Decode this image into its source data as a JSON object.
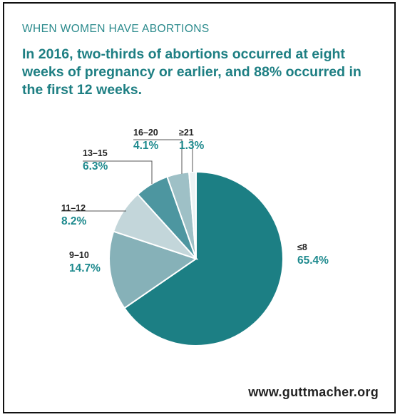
{
  "kicker": "WHEN WOMEN HAVE ABORTIONS",
  "headline": "In 2016, two-thirds of abortions occurred at eight weeks of pregnancy or earlier, and 88% occurred in the first 12 weeks.",
  "footer": "www.guttmacher.org",
  "chart_data": {
    "type": "pie",
    "unit": "%",
    "start": "12 o'clock, clockwise",
    "slices": [
      {
        "label": "≤8",
        "value": 65.4,
        "value_label": "65.4%",
        "color": "#1c7f84"
      },
      {
        "label": "9–10",
        "value": 14.7,
        "value_label": "14.7%",
        "color": "#86b1b8"
      },
      {
        "label": "11–12",
        "value": 8.2,
        "value_label": "8.2%",
        "color": "#c3d6da"
      },
      {
        "label": "13–15",
        "value": 6.3,
        "value_label": "6.3%",
        "color": "#4d96a0"
      },
      {
        "label": "16–20",
        "value": 4.1,
        "value_label": "4.1%",
        "color": "#9ec0c6"
      },
      {
        "label": "≥21",
        "value": 1.3,
        "value_label": "1.3%",
        "color": "#ecf3f4"
      }
    ]
  }
}
